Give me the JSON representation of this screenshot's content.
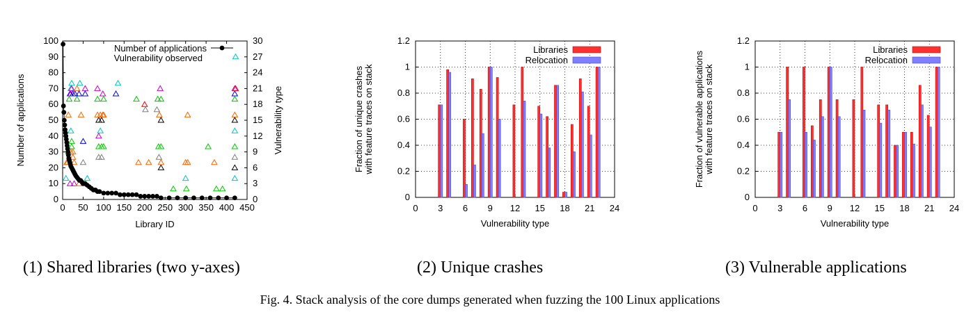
{
  "figure": {
    "caption": "Fig. 4.  Stack analysis of the core dumps generated when fuzzing the 100 Linux applications",
    "subcaptions": [
      "(1) Shared libraries (two y-axes)",
      "(2) Unique crashes",
      "(3) Vulnerable applications"
    ]
  },
  "colors": {
    "libraries": "#ff3030",
    "relocation": "#7f7fff",
    "points": "#000000"
  },
  "chart_data": [
    {
      "type": "scatter",
      "xlabel": "Library ID",
      "ylabel": "Number of applications",
      "y2label": "Vulnerability type",
      "xlim": [
        0,
        450
      ],
      "ylim": [
        0,
        100
      ],
      "y2lim": [
        0,
        30
      ],
      "xticks": [
        0,
        50,
        100,
        150,
        200,
        250,
        300,
        350,
        400,
        450
      ],
      "yticks": [
        0,
        10,
        20,
        30,
        40,
        50,
        60,
        70,
        80,
        90,
        100
      ],
      "y2ticks": [
        0,
        3,
        6,
        9,
        12,
        15,
        18,
        21,
        24,
        27,
        30
      ],
      "grid": false,
      "legend_position": "top-right",
      "legend": [
        "Number of applications",
        "Vulnerability observed"
      ],
      "applications_series": {
        "name": "Number of applications",
        "x": [
          1,
          2,
          3,
          4,
          5,
          6,
          7,
          8,
          9,
          10,
          11,
          12,
          13,
          14,
          15,
          16,
          17,
          18,
          19,
          20,
          22,
          24,
          26,
          28,
          30,
          32,
          35,
          38,
          41,
          44,
          47,
          50,
          55,
          60,
          65,
          70,
          75,
          80,
          85,
          90,
          100,
          110,
          120,
          130,
          140,
          150,
          160,
          170,
          180,
          190,
          200,
          210,
          220,
          230,
          240,
          260,
          280,
          300,
          320,
          340,
          360,
          380,
          400,
          420
        ],
        "y": [
          98,
          59,
          55,
          50,
          47,
          44,
          42,
          40,
          38,
          36,
          34,
          32,
          30,
          28,
          26,
          25,
          24,
          23,
          22,
          21,
          20,
          19,
          18,
          17,
          16,
          15,
          14,
          13,
          12,
          12,
          11,
          10,
          10,
          9,
          8,
          7,
          6,
          6,
          5,
          5,
          4,
          4,
          4,
          4,
          3,
          3,
          3,
          3,
          3,
          2,
          2,
          2,
          2,
          2,
          1,
          1,
          1,
          1,
          1,
          1,
          1,
          1,
          1,
          1
        ]
      },
      "vulnerability_series": {
        "name": "Vulnerability observed",
        "points": [
          [
            8,
            4,
            "#00c8c8"
          ],
          [
            10,
            7,
            "#ff6600"
          ],
          [
            12,
            7,
            "#ff6600"
          ],
          [
            14,
            9,
            "#00cc00"
          ],
          [
            14,
            16,
            "#ff6600"
          ],
          [
            16,
            19,
            "#00cc00"
          ],
          [
            18,
            3,
            "#cc00cc"
          ],
          [
            18,
            20,
            "#0000ff"
          ],
          [
            20,
            21,
            "#00c8c8"
          ],
          [
            20,
            20,
            "#cc00cc"
          ],
          [
            20,
            13,
            "#00c8c8"
          ],
          [
            20,
            9,
            "#ff6600"
          ],
          [
            22,
            10,
            "#00cc00"
          ],
          [
            22,
            11,
            "#00cc00"
          ],
          [
            22,
            21,
            "#cc00cc"
          ],
          [
            22,
            22,
            "#00c8c8"
          ],
          [
            25,
            9,
            "#ff6600"
          ],
          [
            25,
            8,
            "#ff6600"
          ],
          [
            25,
            20,
            "#0000ff"
          ],
          [
            28,
            7,
            "#ff6600"
          ],
          [
            28,
            3,
            "#cc00cc"
          ],
          [
            30,
            20,
            "#0000ff"
          ],
          [
            35,
            19,
            "#00cc00"
          ],
          [
            35,
            21,
            "#ff6600"
          ],
          [
            40,
            20,
            "#0000ff"
          ],
          [
            40,
            3,
            "#ff6600"
          ],
          [
            42,
            22,
            "#00c8c8"
          ],
          [
            45,
            16,
            "#ff6600"
          ],
          [
            50,
            11,
            "#0000ff"
          ],
          [
            50,
            7,
            "#808080"
          ],
          [
            55,
            21,
            "#cc00cc"
          ],
          [
            55,
            20,
            "#0000ff"
          ],
          [
            55,
            3,
            "#00cc00"
          ],
          [
            60,
            4,
            "#00c8c8"
          ],
          [
            85,
            16,
            "#ff6600"
          ],
          [
            85,
            21,
            "#cc00cc"
          ],
          [
            85,
            19,
            "#00cc00"
          ],
          [
            88,
            12,
            "#cc00cc"
          ],
          [
            88,
            15,
            "#000000"
          ],
          [
            88,
            10,
            "#00cc00"
          ],
          [
            88,
            8,
            "#808080"
          ],
          [
            92,
            16,
            "#ff6600"
          ],
          [
            92,
            13,
            "#00c8c8"
          ],
          [
            95,
            15,
            "#000000"
          ],
          [
            95,
            10,
            "#00cc00"
          ],
          [
            95,
            8,
            "#808080"
          ],
          [
            98,
            16,
            "#ff6600"
          ],
          [
            98,
            20,
            "#cc00cc"
          ],
          [
            100,
            19,
            "#00cc00"
          ],
          [
            100,
            10,
            "#00cc00"
          ],
          [
            100,
            16,
            "#ff6600"
          ],
          [
            130,
            20,
            "#0000ff"
          ],
          [
            135,
            22,
            "#00c8c8"
          ],
          [
            180,
            19,
            "#00cc00"
          ],
          [
            185,
            7,
            "#ff6600"
          ],
          [
            200,
            18,
            "#ff0000"
          ],
          [
            202,
            17,
            "#808080"
          ],
          [
            210,
            7,
            "#ff6600"
          ],
          [
            230,
            17,
            "#808080"
          ],
          [
            232,
            19,
            "#00cc00"
          ],
          [
            234,
            10,
            "#00cc00"
          ],
          [
            235,
            8,
            "#808080"
          ],
          [
            236,
            16,
            "#ff6600"
          ],
          [
            238,
            21,
            "#cc00cc"
          ],
          [
            240,
            19,
            "#00cc00"
          ],
          [
            240,
            10,
            "#00cc00"
          ],
          [
            240,
            15,
            "#000000"
          ],
          [
            240,
            6,
            "#000000"
          ],
          [
            240,
            7,
            "#ff6600"
          ],
          [
            270,
            2,
            "#00cc00"
          ],
          [
            300,
            7,
            "#ff6600"
          ],
          [
            300,
            4,
            "#00c8c8"
          ],
          [
            302,
            2,
            "#00cc00"
          ],
          [
            305,
            16,
            "#ff6600"
          ],
          [
            305,
            7,
            "#ff6600"
          ],
          [
            355,
            10,
            "#00cc00"
          ],
          [
            370,
            7,
            "#ff6600"
          ],
          [
            375,
            2,
            "#00cc00"
          ],
          [
            390,
            2,
            "#00cc00"
          ],
          [
            420,
            21,
            "#cc00cc"
          ],
          [
            420,
            20,
            "#0000ff"
          ],
          [
            420,
            19,
            "#00cc00"
          ],
          [
            420,
            16,
            "#ff6600"
          ],
          [
            420,
            15,
            "#000000"
          ],
          [
            420,
            13,
            "#00c8c8"
          ],
          [
            420,
            10,
            "#00cc00"
          ],
          [
            420,
            8,
            "#808080"
          ],
          [
            420,
            6,
            "#000000"
          ],
          [
            420,
            4,
            "#00c8c8"
          ],
          [
            422,
            21,
            "#ff0000"
          ],
          [
            422,
            27,
            "#00c8c8"
          ]
        ]
      }
    },
    {
      "type": "bar",
      "xlabel": "Vulnerability type",
      "ylabel": "Fraction of unique crashes\nwith feature traces on stack",
      "xlim": [
        0,
        24
      ],
      "ylim": [
        0,
        1.2
      ],
      "xticks": [
        0,
        3,
        6,
        9,
        12,
        15,
        18,
        21,
        24
      ],
      "yticks": [
        0,
        0.2,
        0.4,
        0.6,
        0.8,
        1,
        1.2
      ],
      "grid": true,
      "legend_position": "top-right",
      "x": [
        3,
        4,
        6,
        7,
        8,
        9,
        10,
        12,
        13,
        15,
        16,
        17,
        18,
        19,
        20,
        21,
        22
      ],
      "series": [
        {
          "name": "Libraries",
          "values": [
            0.71,
            0.98,
            0.6,
            0.91,
            0.83,
            1.0,
            0.92,
            0.71,
            1.0,
            0.7,
            0.62,
            0.86,
            0.04,
            0.56,
            0.91,
            0.7,
            1.0
          ]
        },
        {
          "name": "Relocation",
          "values": [
            0.71,
            0.96,
            0.1,
            0.25,
            0.49,
            1.0,
            0.6,
            0.0,
            0.74,
            0.64,
            0.38,
            0.86,
            0.04,
            0.35,
            0.81,
            0.48,
            1.0
          ]
        }
      ]
    },
    {
      "type": "bar",
      "xlabel": "Vulnerability type",
      "ylabel": "Fraction of vulnerable applications\nwith feature traces on stack",
      "xlim": [
        0,
        24
      ],
      "ylim": [
        0,
        1.2
      ],
      "xticks": [
        0,
        3,
        6,
        9,
        12,
        15,
        18,
        21,
        24
      ],
      "yticks": [
        0,
        0.2,
        0.4,
        0.6,
        0.8,
        1,
        1.2
      ],
      "grid": true,
      "legend_position": "top-right",
      "x": [
        3,
        4,
        6,
        7,
        8,
        9,
        10,
        12,
        13,
        15,
        16,
        17,
        18,
        19,
        20,
        21,
        22
      ],
      "series": [
        {
          "name": "Libraries",
          "values": [
            0.5,
            1.0,
            1.0,
            0.55,
            0.75,
            1.0,
            0.75,
            0.75,
            1.0,
            0.71,
            0.71,
            0.4,
            0.5,
            0.5,
            0.86,
            0.63,
            1.0
          ]
        },
        {
          "name": "Relocation",
          "values": [
            0.5,
            0.75,
            0.5,
            0.44,
            0.62,
            1.0,
            0.62,
            0.0,
            0.67,
            0.57,
            0.67,
            0.4,
            0.5,
            0.41,
            0.71,
            0.54,
            1.0
          ]
        }
      ]
    }
  ]
}
